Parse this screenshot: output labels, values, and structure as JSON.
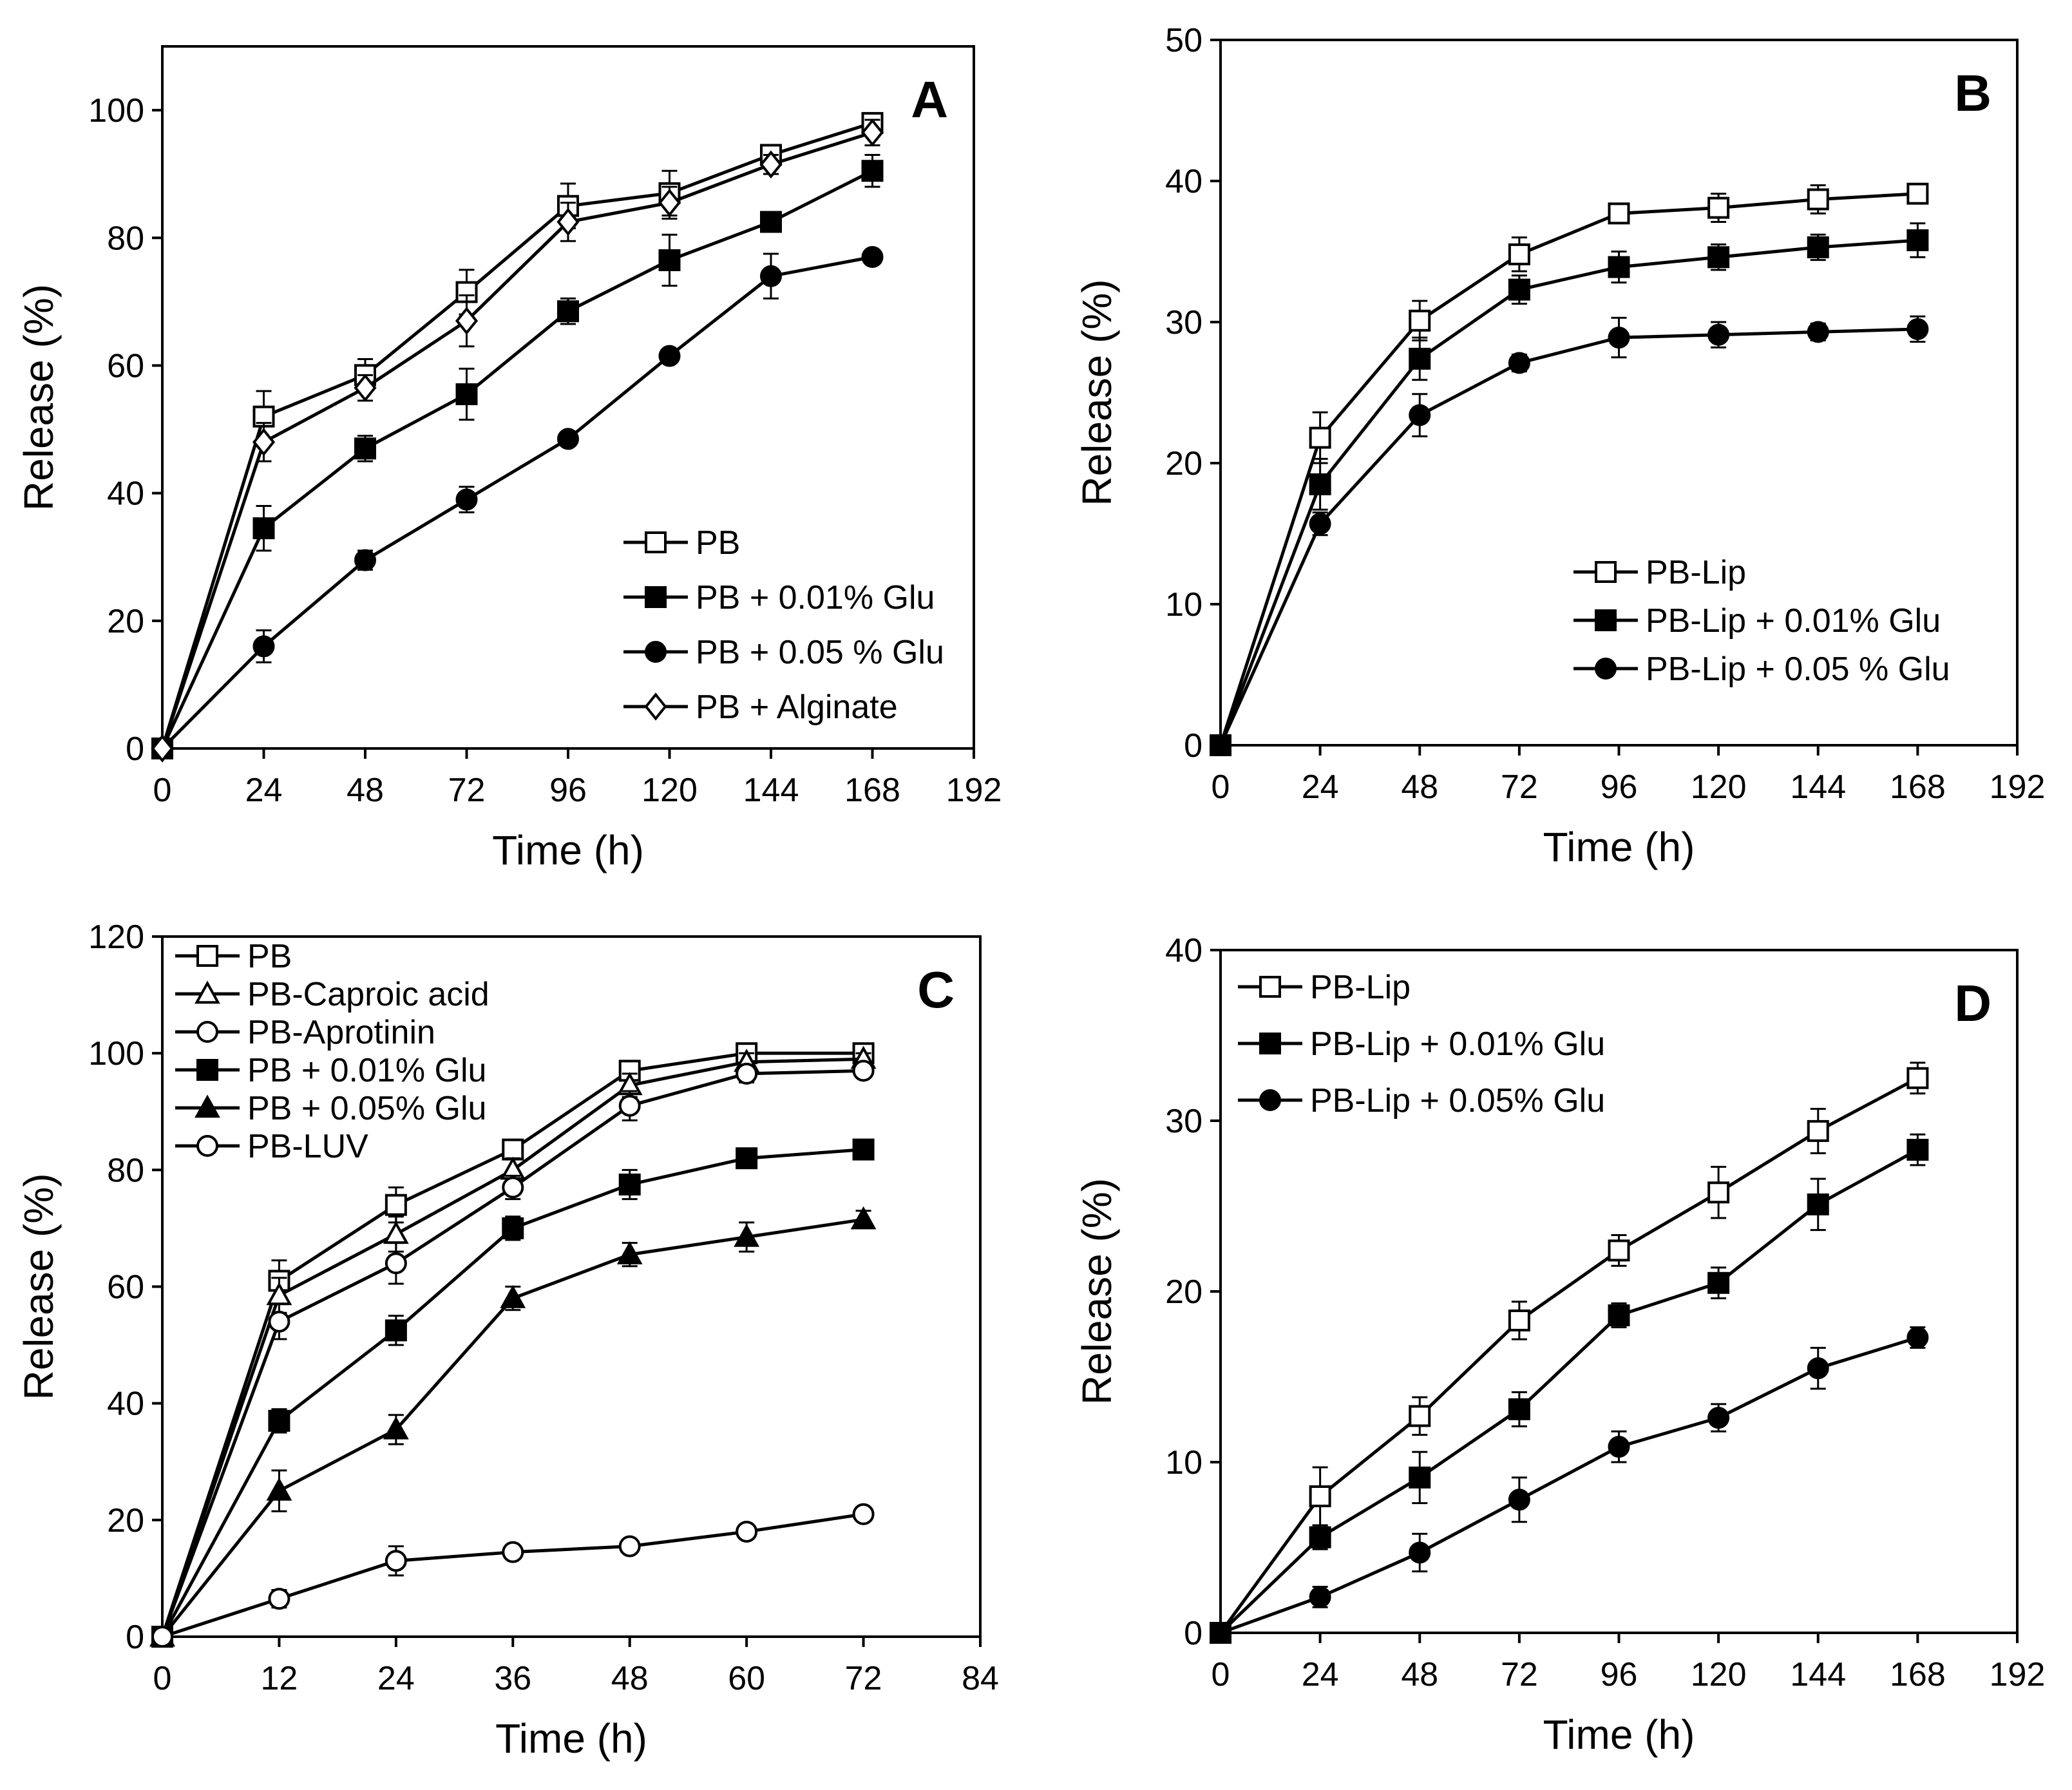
{
  "colors": {
    "ink": "#000000",
    "paper": "#ffffff"
  },
  "chart_data": [
    {
      "panel": "A",
      "type": "line",
      "xlabel": "Time (h)",
      "ylabel": "Release (%)",
      "xlim": [
        0,
        192
      ],
      "ylim": [
        0,
        110
      ],
      "xticks": [
        0,
        24,
        48,
        72,
        96,
        120,
        144,
        168,
        192
      ],
      "yticks": [
        0,
        20,
        40,
        60,
        80,
        100
      ],
      "legend_position": "bottom-right",
      "x": [
        0,
        24,
        48,
        72,
        96,
        120,
        144,
        168
      ],
      "series": [
        {
          "name": "PB",
          "marker": "square-open",
          "values": [
            0,
            52,
            58.5,
            71.5,
            85,
            87,
            93,
            98
          ],
          "errors": [
            0,
            4,
            2.5,
            3.5,
            3.5,
            3.5,
            1.5,
            1.5
          ]
        },
        {
          "name": "PB + 0.01% Glu",
          "marker": "square-filled",
          "values": [
            0,
            34.5,
            47,
            55.5,
            68.5,
            76.5,
            82.5,
            90.5
          ],
          "errors": [
            0,
            3.5,
            2,
            4,
            2,
            4,
            1.5,
            2.5
          ]
        },
        {
          "name": "PB + 0.05 % Glu",
          "marker": "circle-filled",
          "values": [
            0,
            16,
            29.5,
            39,
            48.5,
            61.5,
            74,
            77
          ],
          "errors": [
            0,
            2.5,
            1.5,
            2,
            1,
            1,
            3.5,
            1
          ]
        },
        {
          "name": "PB + Alginate",
          "marker": "diamond-open",
          "values": [
            0,
            48,
            56.5,
            67,
            82.5,
            85.5,
            91.5,
            96.5
          ],
          "errors": [
            0,
            3,
            2,
            4,
            3,
            2.5,
            1.5,
            2
          ]
        }
      ]
    },
    {
      "panel": "B",
      "type": "line",
      "xlabel": "Time (h)",
      "ylabel": "Release (%)",
      "xlim": [
        0,
        192
      ],
      "ylim": [
        0,
        50
      ],
      "xticks": [
        0,
        24,
        48,
        72,
        96,
        120,
        144,
        168,
        192
      ],
      "yticks": [
        0,
        10,
        20,
        30,
        40,
        50
      ],
      "legend_position": "bottom-right",
      "x": [
        0,
        24,
        48,
        72,
        96,
        120,
        144,
        168
      ],
      "series": [
        {
          "name": "PB-Lip",
          "marker": "square-open",
          "values": [
            0,
            21.8,
            30.1,
            34.8,
            37.7,
            38.1,
            38.7,
            39.1
          ],
          "errors": [
            0,
            1.8,
            1.4,
            1.2,
            0.6,
            1,
            1,
            0.6
          ]
        },
        {
          "name": "PB-Lip + 0.01% Glu",
          "marker": "square-filled",
          "values": [
            0,
            18.5,
            27.4,
            32.3,
            33.9,
            34.6,
            35.3,
            35.8
          ],
          "errors": [
            0,
            1.8,
            1.5,
            1,
            1.1,
            0.9,
            0.9,
            1.2
          ]
        },
        {
          "name": "PB-Lip + 0.05 % Glu",
          "marker": "circle-filled",
          "values": [
            0,
            15.7,
            23.4,
            27.1,
            28.9,
            29.1,
            29.3,
            29.5
          ],
          "errors": [
            0,
            0.8,
            1.5,
            0.6,
            1.4,
            0.9,
            0.6,
            0.9
          ]
        }
      ]
    },
    {
      "panel": "C",
      "type": "line",
      "xlabel": "Time (h)",
      "ylabel": "Release (%)",
      "xlim": [
        0,
        84
      ],
      "ylim": [
        0,
        120
      ],
      "xticks": [
        0,
        12,
        24,
        36,
        48,
        60,
        72,
        84
      ],
      "yticks": [
        0,
        20,
        40,
        60,
        80,
        100,
        120
      ],
      "legend_position": "top-left",
      "x": [
        0,
        12,
        24,
        36,
        48,
        60,
        72
      ],
      "series": [
        {
          "name": "PB",
          "marker": "square-open",
          "values": [
            0,
            61,
            74,
            83.5,
            97,
            100,
            100
          ],
          "errors": [
            0,
            3.5,
            3,
            1.5,
            1.5,
            1,
            1
          ]
        },
        {
          "name": "PB-Caproic acid",
          "marker": "triangle-open",
          "values": [
            0,
            58.5,
            69,
            80,
            94.5,
            98.5,
            99
          ],
          "errors": [
            0,
            3,
            3,
            2,
            2,
            1.5,
            1
          ]
        },
        {
          "name": "PB-Aprotinin",
          "marker": "circle-open",
          "values": [
            0,
            54,
            64,
            77,
            91,
            96.5,
            97
          ],
          "errors": [
            0,
            3,
            3.5,
            2,
            2.5,
            1.5,
            1
          ]
        },
        {
          "name": "PB + 0.01% Glu",
          "marker": "square-filled",
          "values": [
            0,
            37,
            52.5,
            70,
            77.5,
            82,
            83.5
          ],
          "errors": [
            0,
            2,
            2.5,
            2,
            2.5,
            1.5,
            1.5
          ]
        },
        {
          "name": "PB + 0.05% Glu",
          "marker": "triangle-filled",
          "values": [
            0,
            25,
            35.5,
            58,
            65.5,
            68.5,
            71.5
          ],
          "errors": [
            0,
            3.5,
            2.5,
            2,
            2,
            2.5,
            1.5
          ]
        },
        {
          "name": "PB-LUV",
          "marker": "circle-open",
          "values": [
            0,
            6.5,
            13,
            14.5,
            15.5,
            18,
            21
          ],
          "errors": [
            0,
            1.5,
            2.5,
            1,
            1,
            1,
            1
          ]
        }
      ]
    },
    {
      "panel": "D",
      "type": "line",
      "xlabel": "Time (h)",
      "ylabel": "Release (%)",
      "xlim": [
        0,
        192
      ],
      "ylim": [
        0,
        40
      ],
      "xticks": [
        0,
        24,
        48,
        72,
        96,
        120,
        144,
        168,
        192
      ],
      "yticks": [
        0,
        10,
        20,
        30,
        40
      ],
      "legend_position": "top-left",
      "x": [
        0,
        24,
        48,
        72,
        96,
        120,
        144,
        168
      ],
      "series": [
        {
          "name": "PB-Lip",
          "marker": "square-open",
          "values": [
            0,
            8,
            12.7,
            18.3,
            22.4,
            25.8,
            29.4,
            32.5
          ],
          "errors": [
            0,
            1.7,
            1.1,
            1.1,
            0.9,
            1.5,
            1.3,
            0.9
          ]
        },
        {
          "name": "PB-Lip + 0.01% Glu",
          "marker": "square-filled",
          "values": [
            0,
            5.6,
            9.1,
            13.1,
            18.6,
            20.5,
            25.1,
            28.3
          ],
          "errors": [
            0,
            0.7,
            1.5,
            1,
            0.7,
            0.9,
            1.5,
            0.9
          ]
        },
        {
          "name": "PB-Lip + 0.05% Glu",
          "marker": "circle-filled",
          "values": [
            0,
            2.1,
            4.7,
            7.8,
            10.9,
            12.6,
            15.5,
            17.3
          ],
          "errors": [
            0,
            0.6,
            1.1,
            1.3,
            0.9,
            0.8,
            1.2,
            0.6
          ]
        }
      ]
    }
  ]
}
